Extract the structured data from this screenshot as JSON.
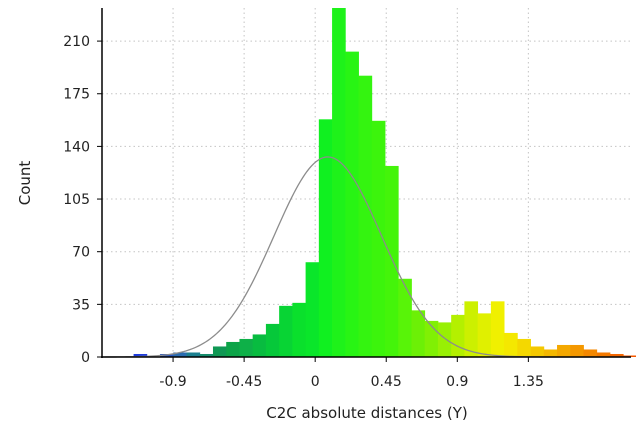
{
  "chart_data": {
    "type": "bar",
    "title": "",
    "xlabel": "C2C absolute distances (Y)",
    "ylabel": "Count",
    "xlim": [
      -1.35,
      2.0
    ],
    "ylim": [
      0,
      232
    ],
    "grid": true,
    "xticks": [
      -0.9,
      -0.45,
      0,
      0.45,
      0.9,
      1.35
    ],
    "xtick_labels": [
      "-0.9",
      "-0.45",
      "0",
      "0.45",
      "0.9",
      "1.35"
    ],
    "yticks": [
      0,
      35,
      70,
      105,
      140,
      175,
      210
    ],
    "ytick_labels": [
      "0",
      "35",
      "70",
      "105",
      "140",
      "175",
      "210"
    ],
    "bin_width": 0.0838,
    "bins_start": -1.15,
    "values": [
      2,
      0,
      2,
      3,
      3,
      2,
      7,
      10,
      12,
      15,
      22,
      34,
      36,
      63,
      158,
      232,
      203,
      187,
      157,
      127,
      52,
      31,
      24,
      23,
      28,
      37,
      29,
      37,
      16,
      12,
      7,
      5,
      8,
      8,
      5,
      3,
      2,
      1,
      2,
      3,
      2,
      1,
      3
    ],
    "colors": [
      "#1e3cdc",
      "#2a40d4",
      "#2858c4",
      "#2a6cb0",
      "#1c8090",
      "#168c6c",
      "#109854",
      "#0ca448",
      "#0eb048",
      "#08bc40",
      "#06c83a",
      "#08d434",
      "#0ae02c",
      "#0ae62a",
      "#10f020",
      "#1ef21a",
      "#28f414",
      "#34f410",
      "#3cf40c",
      "#44f40a",
      "#58f408",
      "#6cf006",
      "#80f004",
      "#98f004",
      "#b4f000",
      "#ccf000",
      "#e0f000",
      "#f0f000",
      "#f4e800",
      "#f4d800",
      "#f4c800",
      "#f4b800",
      "#f4a800",
      "#f49800",
      "#f48800",
      "#f47a00",
      "#f46600",
      "#f45800",
      "#f44a00",
      "#f43c00",
      "#f42c00",
      "#f41e00",
      "#f41400"
    ],
    "fit": {
      "type": "gaussian",
      "mean": 0.08,
      "sigma": 0.34,
      "peak": 133,
      "color": "#8c8c8c"
    }
  }
}
